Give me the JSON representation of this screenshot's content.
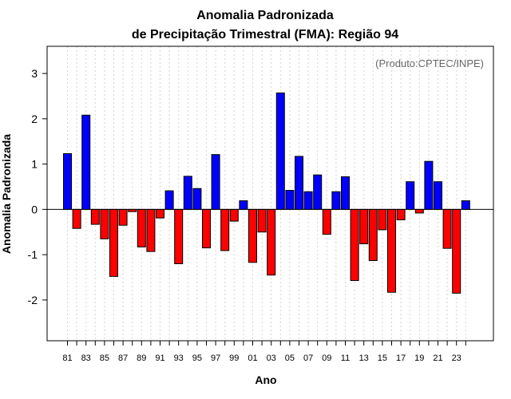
{
  "chart_data": {
    "type": "bar",
    "title": "Anomalia Padronizada",
    "subtitle": "de Precipitação Trimestral (FMA): Região 94",
    "xlabel": "Ano",
    "ylabel": "Anomalia Padronizada",
    "credit": "(Produto:CPTEC/INPE)",
    "ylim": [
      -2.9,
      3.6
    ],
    "yticks": [
      "-2",
      "-1",
      "0",
      "1",
      "2",
      "3"
    ],
    "xtick_labels": [
      "81",
      "83",
      "85",
      "87",
      "89",
      "91",
      "93",
      "95",
      "97",
      "99",
      "01",
      "03",
      "05",
      "07",
      "09",
      "11",
      "13",
      "15",
      "17",
      "19",
      "21",
      "23"
    ],
    "categories": [
      "1981",
      "1982",
      "1983",
      "1984",
      "1985",
      "1986",
      "1987",
      "1988",
      "1989",
      "1990",
      "1991",
      "1992",
      "1993",
      "1994",
      "1995",
      "1996",
      "1997",
      "1998",
      "1999",
      "2000",
      "2001",
      "2002",
      "2003",
      "2004",
      "2005",
      "2006",
      "2007",
      "2008",
      "2009",
      "2010",
      "2011",
      "2012",
      "2013",
      "2014",
      "2015",
      "2016",
      "2017",
      "2018",
      "2019",
      "2020",
      "2021",
      "2022",
      "2023",
      "2024"
    ],
    "values": [
      1.23,
      -0.42,
      2.08,
      -0.33,
      -0.65,
      -1.48,
      -0.35,
      -0.05,
      -0.83,
      -0.93,
      -0.19,
      0.41,
      -1.2,
      0.73,
      0.46,
      -0.85,
      1.21,
      -0.91,
      -0.26,
      0.19,
      -1.17,
      -0.5,
      -1.45,
      2.57,
      0.42,
      1.17,
      0.39,
      0.76,
      -0.55,
      0.39,
      0.72,
      -1.57,
      -0.76,
      -1.13,
      -0.45,
      -1.83,
      -0.23,
      0.61,
      -0.08,
      1.06,
      0.61,
      -0.86,
      -1.85,
      0.19
    ],
    "colors": {
      "positive": "#0000ff",
      "negative": "#ff0000",
      "grid": "#d3d3d3"
    },
    "grid": true
  }
}
